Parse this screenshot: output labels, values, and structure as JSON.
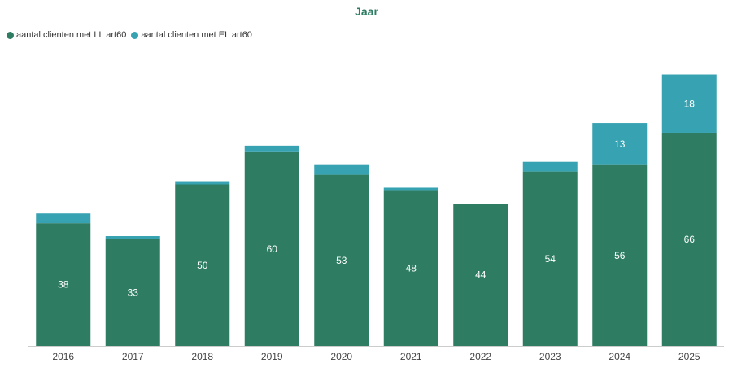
{
  "colors": {
    "series_ll": "#2e7d63",
    "series_el": "#37a2b1",
    "title": "#2e7d63",
    "axis": "#cccccc",
    "tick_text": "#444444",
    "data_label": "#ffffff"
  },
  "chart_data": {
    "type": "bar",
    "stacked": true,
    "title": "Jaar",
    "xlabel": "",
    "ylabel": "",
    "ylim": [
      0,
      90
    ],
    "grid": false,
    "legend_position": "top-left",
    "categories": [
      "2016",
      "2017",
      "2018",
      "2019",
      "2020",
      "2021",
      "2022",
      "2023",
      "2024",
      "2025"
    ],
    "series": [
      {
        "name": "aantal clienten met LL art60",
        "values": [
          38,
          33,
          50,
          60,
          53,
          48,
          44,
          54,
          56,
          66
        ],
        "labels": [
          "38",
          "33",
          "50",
          "60",
          "53",
          "48",
          "44",
          "54",
          "56",
          "66"
        ]
      },
      {
        "name": "aantal clienten met EL art60",
        "values": [
          3,
          1,
          1,
          2,
          3,
          1,
          0,
          3,
          13,
          18
        ],
        "labels": [
          "",
          "",
          "",
          "",
          "",
          "",
          "",
          "",
          "13",
          "18"
        ]
      }
    ]
  }
}
